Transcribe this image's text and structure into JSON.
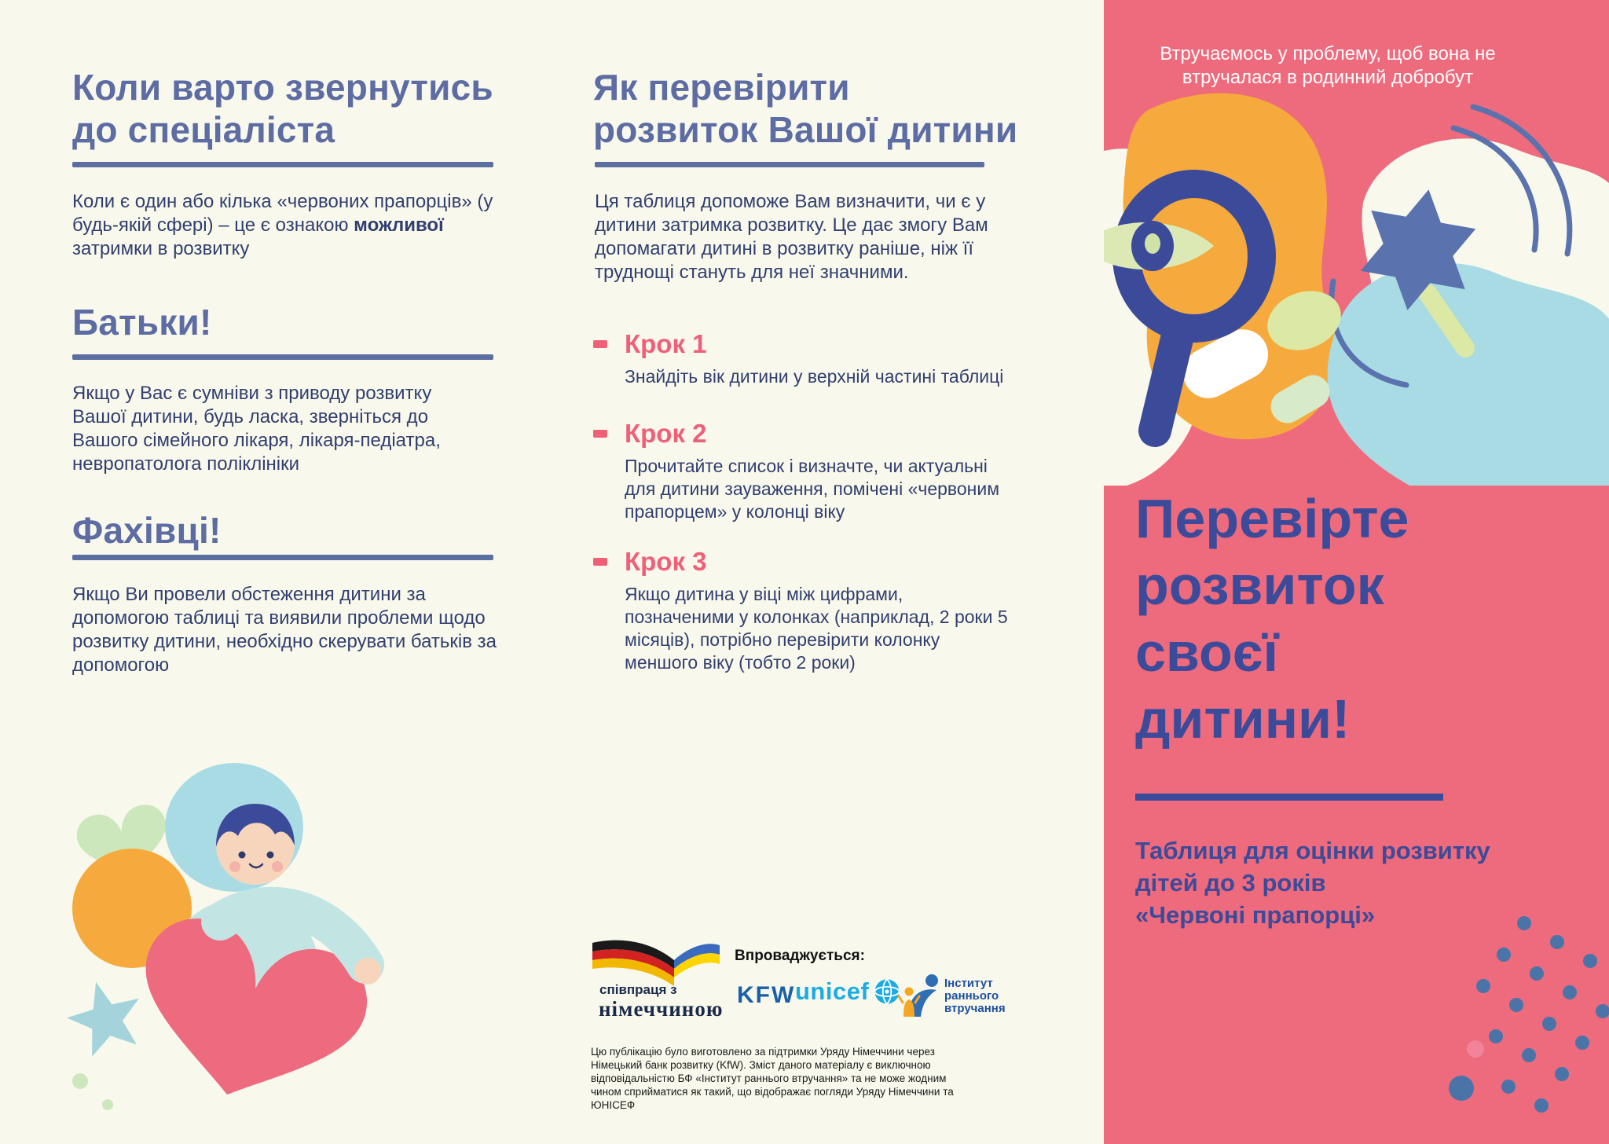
{
  "left_panel": {
    "section1": {
      "title_lines": [
        "Коли варто звернутись",
        "до спеціаліста"
      ],
      "body_pre": "Коли є один або кілька «червоних прапорців» (у будь-якій сфері) – це є ознакою ",
      "body_bold": "можливої",
      "body_post": " затримки в розвитку"
    },
    "section2": {
      "title": "Батьки!",
      "body": "Якщо у Вас є сумніви з приводу розвитку Вашої дитини, будь ласка, зверніться до Вашого сімейного лікаря, лікаря-педіатра, невропатолога поліклініки"
    },
    "section3": {
      "title": "Фахівці!",
      "body": "Якщо Ви провели обстеження дитини за допомогою таблиці та виявили проблеми щодо розвитку дитини, необхідно скерувати батьків за допомогою"
    }
  },
  "middle_panel": {
    "title_lines": [
      "Як перевірити",
      "розвиток Вашої дитини"
    ],
    "intro": "Ця таблиця допоможе Вам визначити, чи є у дитини затримка розвитку. Це дає змогу Вам допомагати дитині в розвитку раніше, ніж її труднощі стануть для неї значними.",
    "steps": [
      {
        "label": "Крок 1",
        "text": "Знайдіть вік дитини у верхній частині таблиці"
      },
      {
        "label": "Крок 2",
        "text": "Прочитайте список і визначте, чи актуальні для дитини зауваження, помічені «червоним прапорцем» у колонці віку"
      },
      {
        "label": "Крок 3",
        "text": "Якщо дитина у віці між цифрами, позначеними у колонках (наприклад, 2 роки 5 місяців), потрібно перевірити колонку меншого віку (тобто 2 роки)"
      }
    ],
    "logos": {
      "germany_line1": "співпраця з",
      "germany_line2": "німеччиною",
      "implemented_label": "Впроваджується:",
      "kfw": "KFW",
      "unicef": "unicef",
      "institute_lines": [
        "Інститут",
        "раннього",
        "втручання"
      ]
    },
    "disclaimer": "Цю публікацію було виготовлено за підтримки Уряду Німеччини через Німецький банк розвитку (KfW). Зміст даного матеріалу є виключною відповідальністю БФ «Інститут раннього втручання» та не може жодним чином сприйматися як такий, що відображає погляди Уряду Німеччини та ЮНІСЕФ"
  },
  "right_panel": {
    "tagline": "Втручаємось у проблему, щоб вона не втручалася в родинний добробут",
    "title": "Перевірте розвиток своєї дитини!",
    "subtitle_lines": [
      "Таблиця для оцінки розвитку",
      "дітей до 3 років",
      "«Червоні прапорці»"
    ]
  },
  "colors": {
    "background": "#f8f9ec",
    "heading_blue": "#5d6ca3",
    "body_navy": "#323e6e",
    "rule_blue": "#5b6fa0",
    "accent_pink": "#ef5f78",
    "panel_pink": "#ee6a7d",
    "title_indigo": "#3c4b99",
    "orange_blob": "#f6a93c",
    "light_blue_blob": "#a9dbe4",
    "mint": "#cde7bd",
    "star_blue": "#5a72ad",
    "kfw_blue": "#1b5fa8",
    "unicef_blue": "#1cabe2"
  }
}
